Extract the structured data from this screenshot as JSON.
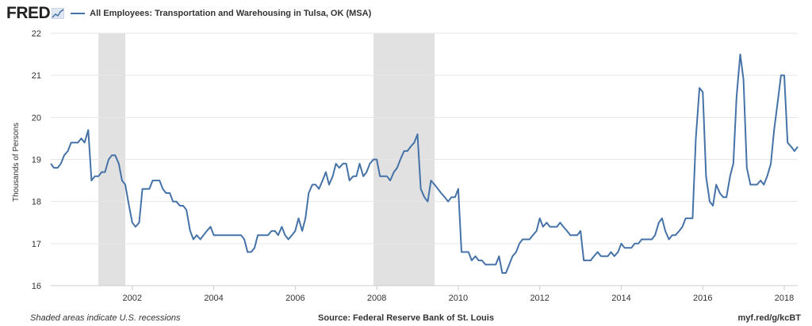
{
  "header": {
    "logo_text": "FRED",
    "logo_icon": "trend-chart-icon",
    "series_title": "All Employees: Transportation and Warehousing in Tulsa, OK (MSA)"
  },
  "footer": {
    "recession_note": "Shaded areas indicate U.S. recessions",
    "source": "Source: Federal Reserve Bank of St. Louis",
    "short_url": "myf.red/g/kcBT"
  },
  "colors": {
    "series": "#4572a7",
    "recession": "#e1e1e1",
    "grid": "#e6e6e6",
    "axis": "#cccccc"
  },
  "chart_data": {
    "type": "line",
    "title": "",
    "ylabel": "Thousands of Persons",
    "xlabel": "",
    "xlim": [
      2000.0,
      2018.33
    ],
    "ylim": [
      16,
      22
    ],
    "grid": true,
    "yticks": [
      16,
      17,
      18,
      19,
      20,
      21,
      22
    ],
    "xticks": [
      2002,
      2004,
      2006,
      2008,
      2010,
      2012,
      2014,
      2016,
      2018
    ],
    "recessions": [
      [
        2001.17,
        2001.83
      ],
      [
        2007.92,
        2009.42
      ]
    ],
    "series": [
      {
        "name": "All Employees: Transportation and Warehousing in Tulsa, OK (MSA)",
        "x": [
          2000.0,
          2000.08,
          2000.17,
          2000.25,
          2000.33,
          2000.42,
          2000.5,
          2000.58,
          2000.67,
          2000.75,
          2000.83,
          2000.92,
          2001.0,
          2001.08,
          2001.17,
          2001.25,
          2001.33,
          2001.42,
          2001.5,
          2001.58,
          2001.67,
          2001.75,
          2001.83,
          2001.92,
          2002.0,
          2002.08,
          2002.17,
          2002.25,
          2002.33,
          2002.42,
          2002.5,
          2002.58,
          2002.67,
          2002.75,
          2002.83,
          2002.92,
          2003.0,
          2003.08,
          2003.17,
          2003.25,
          2003.33,
          2003.42,
          2003.5,
          2003.58,
          2003.67,
          2003.75,
          2003.83,
          2003.92,
          2004.0,
          2004.08,
          2004.17,
          2004.25,
          2004.33,
          2004.42,
          2004.5,
          2004.58,
          2004.67,
          2004.75,
          2004.83,
          2004.92,
          2005.0,
          2005.08,
          2005.17,
          2005.25,
          2005.33,
          2005.42,
          2005.5,
          2005.58,
          2005.67,
          2005.75,
          2005.83,
          2005.92,
          2006.0,
          2006.08,
          2006.17,
          2006.25,
          2006.33,
          2006.42,
          2006.5,
          2006.58,
          2006.67,
          2006.75,
          2006.83,
          2006.92,
          2007.0,
          2007.08,
          2007.17,
          2007.25,
          2007.33,
          2007.42,
          2007.5,
          2007.58,
          2007.67,
          2007.75,
          2007.83,
          2007.92,
          2008.0,
          2008.08,
          2008.17,
          2008.25,
          2008.33,
          2008.42,
          2008.5,
          2008.58,
          2008.67,
          2008.75,
          2008.83,
          2008.92,
          2009.0,
          2009.08,
          2009.17,
          2009.25,
          2009.33,
          2009.42,
          2009.5,
          2009.58,
          2009.67,
          2009.75,
          2009.83,
          2009.92,
          2010.0,
          2010.08,
          2010.17,
          2010.25,
          2010.33,
          2010.42,
          2010.5,
          2010.58,
          2010.67,
          2010.75,
          2010.83,
          2010.92,
          2011.0,
          2011.08,
          2011.17,
          2011.25,
          2011.33,
          2011.42,
          2011.5,
          2011.58,
          2011.67,
          2011.75,
          2011.83,
          2011.92,
          2012.0,
          2012.08,
          2012.17,
          2012.25,
          2012.33,
          2012.42,
          2012.5,
          2012.58,
          2012.67,
          2012.75,
          2012.83,
          2012.92,
          2013.0,
          2013.08,
          2013.17,
          2013.25,
          2013.33,
          2013.42,
          2013.5,
          2013.58,
          2013.67,
          2013.75,
          2013.83,
          2013.92,
          2014.0,
          2014.08,
          2014.17,
          2014.25,
          2014.33,
          2014.42,
          2014.5,
          2014.58,
          2014.67,
          2014.75,
          2014.83,
          2014.92,
          2015.0,
          2015.08,
          2015.17,
          2015.25,
          2015.33,
          2015.42,
          2015.5,
          2015.58,
          2015.67,
          2015.75,
          2015.83,
          2015.92,
          2016.0,
          2016.08,
          2016.17,
          2016.25,
          2016.33,
          2016.42,
          2016.5,
          2016.58,
          2016.67,
          2016.75,
          2016.83,
          2016.92,
          2017.0,
          2017.08,
          2017.17,
          2017.25,
          2017.33,
          2017.42,
          2017.5,
          2017.58,
          2017.67,
          2017.75,
          2017.83,
          2017.92,
          2018.0,
          2018.08,
          2018.17,
          2018.25,
          2018.33
        ],
        "y": [
          18.9,
          18.8,
          18.8,
          18.9,
          19.1,
          19.2,
          19.4,
          19.4,
          19.4,
          19.5,
          19.4,
          19.7,
          18.5,
          18.6,
          18.6,
          18.7,
          18.7,
          19.0,
          19.1,
          19.1,
          18.9,
          18.5,
          18.4,
          17.9,
          17.5,
          17.4,
          17.5,
          18.3,
          18.3,
          18.3,
          18.5,
          18.5,
          18.5,
          18.3,
          18.2,
          18.2,
          18.0,
          18.0,
          17.9,
          17.9,
          17.8,
          17.3,
          17.1,
          17.2,
          17.1,
          17.2,
          17.3,
          17.4,
          17.2,
          17.2,
          17.2,
          17.2,
          17.2,
          17.2,
          17.2,
          17.2,
          17.2,
          17.1,
          16.8,
          16.8,
          16.9,
          17.2,
          17.2,
          17.2,
          17.2,
          17.3,
          17.3,
          17.2,
          17.4,
          17.2,
          17.1,
          17.2,
          17.3,
          17.6,
          17.3,
          17.6,
          18.2,
          18.4,
          18.4,
          18.3,
          18.5,
          18.7,
          18.4,
          18.6,
          18.9,
          18.8,
          18.9,
          18.9,
          18.5,
          18.6,
          18.6,
          18.9,
          18.6,
          18.7,
          18.9,
          19.0,
          19.0,
          18.6,
          18.6,
          18.6,
          18.5,
          18.7,
          18.8,
          19.0,
          19.2,
          19.2,
          19.3,
          19.4,
          19.6,
          18.3,
          18.1,
          18.0,
          18.5,
          18.4,
          18.3,
          18.2,
          18.1,
          18.0,
          18.1,
          18.1,
          18.3,
          16.8,
          16.8,
          16.8,
          16.6,
          16.7,
          16.6,
          16.6,
          16.5,
          16.5,
          16.5,
          16.5,
          16.7,
          16.3,
          16.3,
          16.5,
          16.7,
          16.8,
          17.0,
          17.1,
          17.1,
          17.1,
          17.2,
          17.3,
          17.6,
          17.4,
          17.5,
          17.4,
          17.4,
          17.4,
          17.5,
          17.4,
          17.3,
          17.2,
          17.2,
          17.2,
          17.3,
          16.6,
          16.6,
          16.6,
          16.7,
          16.8,
          16.7,
          16.7,
          16.7,
          16.8,
          16.7,
          16.8,
          17.0,
          16.9,
          16.9,
          16.9,
          17.0,
          17.0,
          17.1,
          17.1,
          17.1,
          17.1,
          17.2,
          17.5,
          17.6,
          17.3,
          17.1,
          17.2,
          17.2,
          17.3,
          17.4,
          17.6,
          17.6,
          17.6,
          19.5,
          20.7,
          20.6,
          18.6,
          18.0,
          17.9,
          18.4,
          18.2,
          18.1,
          18.1,
          18.6,
          18.9,
          20.5,
          21.5,
          20.9,
          18.8,
          18.4,
          18.4,
          18.4,
          18.5,
          18.4,
          18.6,
          18.9,
          19.7,
          20.3,
          21.0,
          21.0,
          19.4,
          19.3,
          19.2,
          19.3
        ]
      }
    ]
  }
}
